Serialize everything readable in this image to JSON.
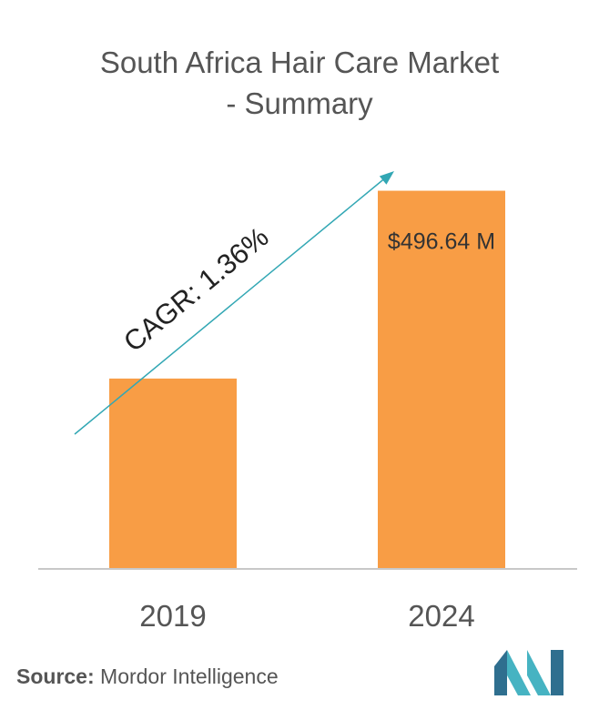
{
  "chart_data": {
    "type": "bar",
    "title_line1": "South Africa Hair Care Market",
    "title_line2": "- Summary",
    "categories": [
      "2019",
      "2024"
    ],
    "values": [
      250,
      496.64
    ],
    "value_labels": [
      "",
      "$496.64 M"
    ],
    "annotation": "CAGR: 1.36%",
    "bar_color": "#f89d45",
    "arrow_color": "#32a7b4",
    "ylim": [
      0,
      520
    ]
  },
  "source": {
    "label": "Source:",
    "text": "Mordor Intelligence"
  },
  "logo": {
    "icon": "mordor-intelligence-logo-icon",
    "colors": [
      "#2f6f8f",
      "#46b3c2"
    ]
  }
}
